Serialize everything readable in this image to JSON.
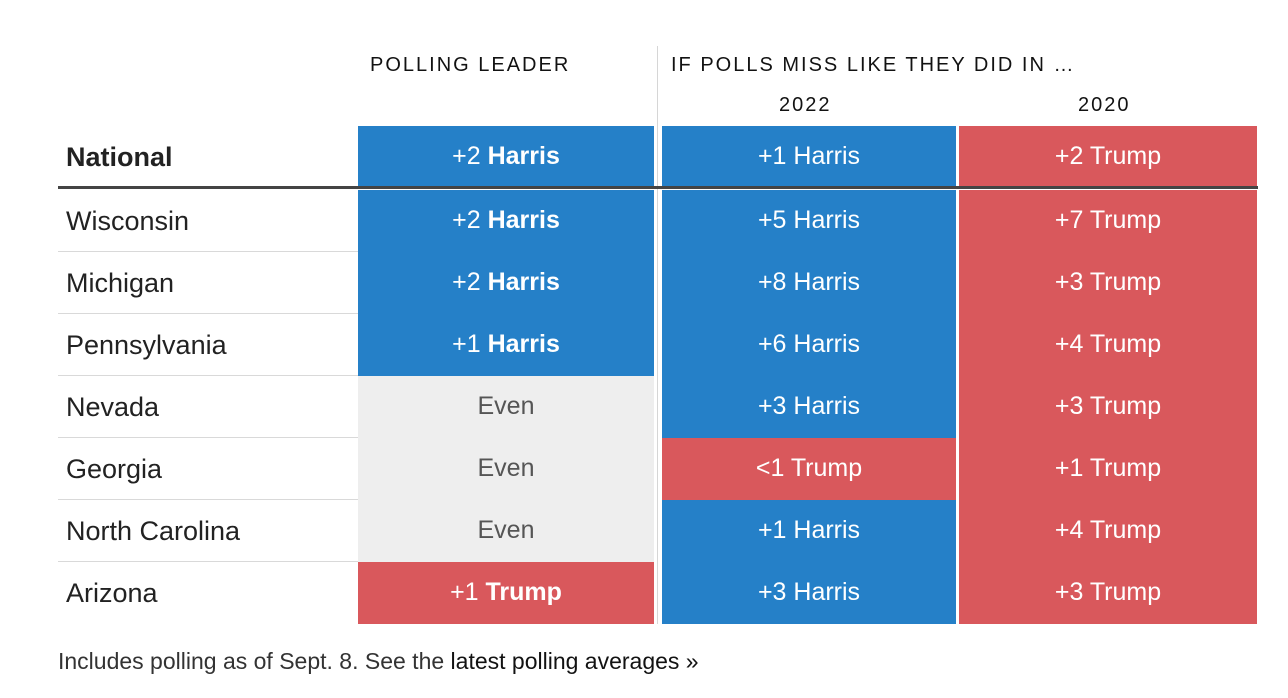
{
  "colors": {
    "harris": "#2580c8",
    "trump": "#d9585c",
    "even": "#eeeeee"
  },
  "chart_data": {
    "type": "table",
    "headers": {
      "leader": "POLLING LEADER",
      "miss": "IF POLLS MISS LIKE THEY DID IN …",
      "y2022": "2022",
      "y2020": "2020"
    },
    "rows": [
      {
        "state": "National",
        "leader": {
          "margin": "+2",
          "name": "Harris",
          "party": "harris"
        },
        "y2022": {
          "text": "+1 Harris",
          "party": "harris"
        },
        "y2020": {
          "text": "+2 Trump",
          "party": "trump"
        }
      },
      {
        "state": "Wisconsin",
        "leader": {
          "margin": "+2",
          "name": "Harris",
          "party": "harris"
        },
        "y2022": {
          "text": "+5 Harris",
          "party": "harris"
        },
        "y2020": {
          "text": "+7 Trump",
          "party": "trump"
        }
      },
      {
        "state": "Michigan",
        "leader": {
          "margin": "+2",
          "name": "Harris",
          "party": "harris"
        },
        "y2022": {
          "text": "+8 Harris",
          "party": "harris"
        },
        "y2020": {
          "text": "+3 Trump",
          "party": "trump"
        }
      },
      {
        "state": "Pennsylvania",
        "leader": {
          "margin": "+1",
          "name": "Harris",
          "party": "harris"
        },
        "y2022": {
          "text": "+6 Harris",
          "party": "harris"
        },
        "y2020": {
          "text": "+4 Trump",
          "party": "trump"
        }
      },
      {
        "state": "Nevada",
        "leader": {
          "margin": "",
          "name": "Even",
          "party": "even"
        },
        "y2022": {
          "text": "+3 Harris",
          "party": "harris"
        },
        "y2020": {
          "text": "+3 Trump",
          "party": "trump"
        }
      },
      {
        "state": "Georgia",
        "leader": {
          "margin": "",
          "name": "Even",
          "party": "even"
        },
        "y2022": {
          "text": "<1 Trump",
          "party": "trump"
        },
        "y2020": {
          "text": "+1 Trump",
          "party": "trump"
        }
      },
      {
        "state": "North Carolina",
        "leader": {
          "margin": "",
          "name": "Even",
          "party": "even"
        },
        "y2022": {
          "text": "+1 Harris",
          "party": "harris"
        },
        "y2020": {
          "text": "+4 Trump",
          "party": "trump"
        }
      },
      {
        "state": "Arizona",
        "leader": {
          "margin": "+1",
          "name": "Trump",
          "party": "trump"
        },
        "y2022": {
          "text": "+3 Harris",
          "party": "harris"
        },
        "y2020": {
          "text": "+3 Trump",
          "party": "trump"
        }
      }
    ]
  },
  "footer": {
    "note": "Includes polling as of Sept. 8. See the ",
    "link": "latest polling averages »"
  }
}
